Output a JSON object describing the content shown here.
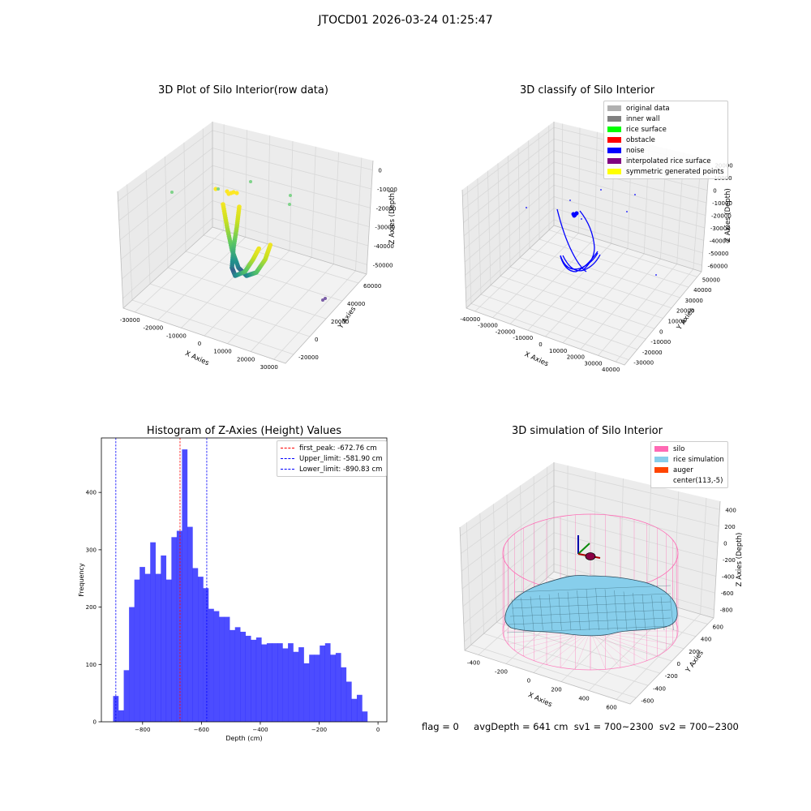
{
  "suptitle": "JTOCD01 2026-03-24 01:25:47",
  "chart_data": [
    {
      "type": "scatter",
      "title": "3D Plot of Silo Interior(row data)",
      "xlabel": "X Axies",
      "ylabel": "Y Axies",
      "zlabel": "Z Axies (Depth)",
      "x_ticks": [
        "-30000",
        "-20000",
        "-10000",
        "0",
        "10000",
        "20000",
        "30000"
      ],
      "y_ticks": [
        "-20000",
        "0",
        "20000",
        "40000",
        "60000"
      ],
      "z_ticks": [
        "-50000",
        "-40000",
        "-30000",
        "-20000",
        "-10000",
        "0"
      ]
    },
    {
      "type": "scatter",
      "title": "3D classify of Silo Interior",
      "xlabel": "X Axies",
      "ylabel": "Y Axies",
      "zlabel": "Z Axies (Depth)",
      "x_ticks": [
        "-40000",
        "-30000",
        "-20000",
        "-10000",
        "0",
        "10000",
        "20000",
        "30000",
        "40000"
      ],
      "y_ticks": [
        "-30000",
        "-20000",
        "-10000",
        "0",
        "10000",
        "20000",
        "30000",
        "40000",
        "50000"
      ],
      "z_ticks": [
        "-60000",
        "-50000",
        "-40000",
        "-30000",
        "-20000",
        "-10000",
        "0",
        "10000",
        "20000"
      ],
      "legend": [
        {
          "label": "original data",
          "color": "#b0b0b0"
        },
        {
          "label": "inner wall",
          "color": "#808080"
        },
        {
          "label": "rice surface",
          "color": "#00ff00"
        },
        {
          "label": "obstacle",
          "color": "#ff0000"
        },
        {
          "label": "noise",
          "color": "#0000ff"
        },
        {
          "label": "interpolated rice surface",
          "color": "#800080"
        },
        {
          "label": "symmetric generated points",
          "color": "#ffff00"
        }
      ]
    },
    {
      "type": "bar",
      "title": "Histogram of Z-Axies (Height) Values",
      "xlabel": "Depth (cm)",
      "ylabel": "Frequency",
      "xlim": [
        -940,
        30
      ],
      "ylim": [
        0,
        495
      ],
      "x_ticks": [
        -800,
        -600,
        -400,
        -200,
        0
      ],
      "y_ticks": [
        0,
        100,
        200,
        300,
        400
      ],
      "bin_start": -900,
      "bin_width": 18,
      "values": [
        45,
        20,
        90,
        200,
        248,
        270,
        258,
        313,
        258,
        290,
        248,
        322,
        333,
        475,
        340,
        268,
        253,
        233,
        197,
        193,
        183,
        183,
        160,
        165,
        157,
        150,
        143,
        147,
        135,
        137,
        137,
        137,
        128,
        137,
        122,
        130,
        102,
        117,
        117,
        133,
        137,
        117,
        120,
        95,
        70,
        40,
        47,
        18
      ],
      "bar_color": "#0000ff",
      "lines": [
        {
          "label": "first_peak: -672.76 cm",
          "value": -672.76,
          "color": "#ff0000"
        },
        {
          "label": "Upper_limit: -581.90 cm",
          "value": -581.9,
          "color": "#0000ff"
        },
        {
          "label": "Lower_limit: -890.83 cm",
          "value": -890.83,
          "color": "#0000ff"
        }
      ]
    },
    {
      "type": "3d-surface",
      "title": "3D simulation of Silo Interior",
      "xlabel": "X Axies",
      "ylabel": "Y Axies",
      "zlabel": "Z Axies (Depth)",
      "x_ticks": [
        "-400",
        "-200",
        "0",
        "200",
        "400",
        "600"
      ],
      "y_ticks": [
        "-600",
        "-400",
        "-200",
        "0",
        "200",
        "400",
        "600"
      ],
      "z_ticks": [
        "-800",
        "-600",
        "-400",
        "-200",
        "0",
        "200",
        "400"
      ],
      "legend": [
        {
          "label": "silo",
          "color": "#ff69b4"
        },
        {
          "label": "rice simulation",
          "color": "#87ceeb"
        },
        {
          "label": "auger",
          "color": "#ff4500"
        },
        {
          "label": "center(113,-5)",
          "color": ""
        }
      ]
    }
  ],
  "status": {
    "flag": "flag = 0",
    "avg_depth": "avgDepth = 641 cm",
    "sv1": "sv1 = 700~2300",
    "sv2": "sv2 = 700~2300"
  }
}
